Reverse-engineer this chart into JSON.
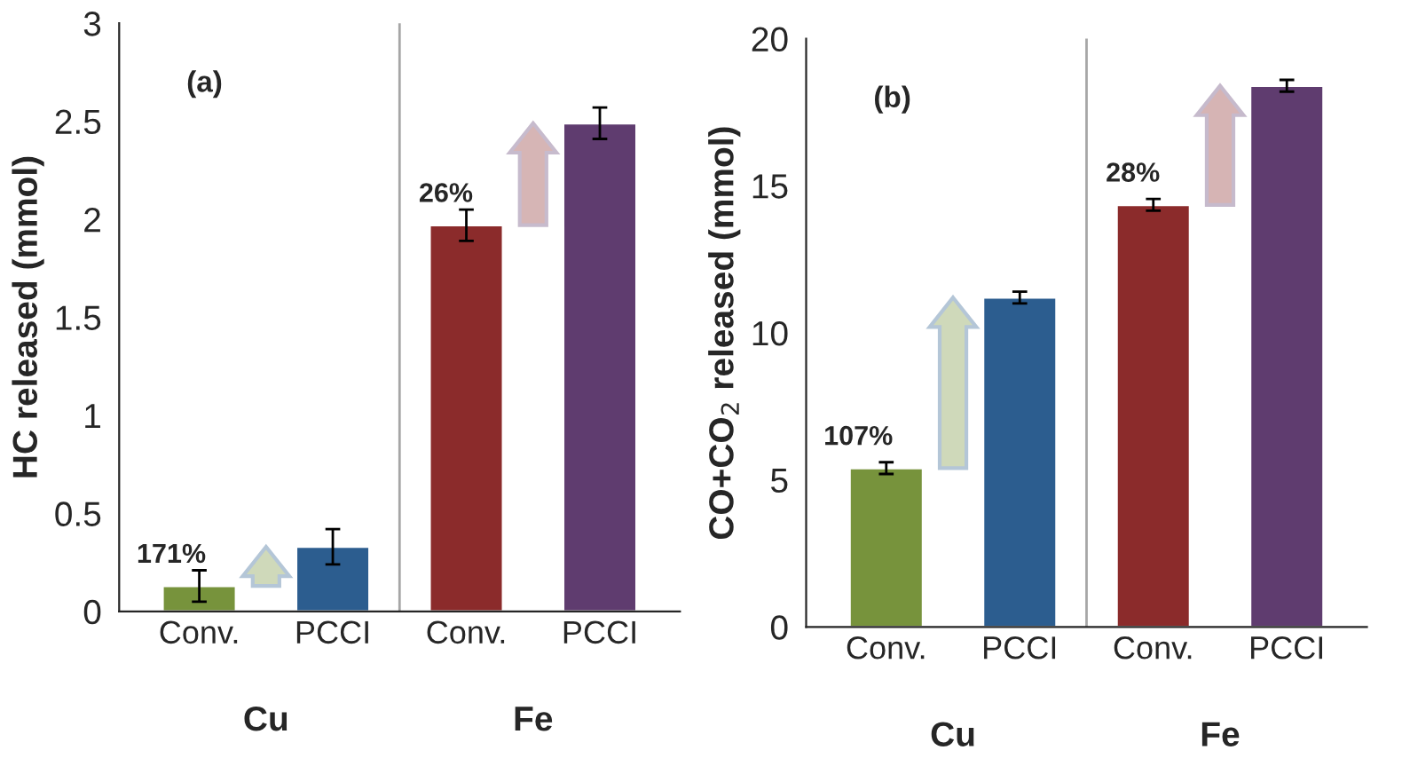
{
  "chart_data": [
    {
      "type": "bar",
      "ylabel": "HC released (mmol)",
      "categories": [
        "Conv.",
        "PCCI",
        "Conv.",
        "PCCI"
      ],
      "values": [
        0.13,
        0.33,
        1.97,
        2.49
      ],
      "errors": [
        0.08,
        0.09,
        0.08,
        0.08
      ],
      "colors": [
        "#77933c",
        "#2c5d8f",
        "#8b2b2b",
        "#5f3c6f"
      ],
      "ylim": [
        0,
        3
      ],
      "yticks": [
        0,
        0.5,
        1,
        1.5,
        2,
        2.5,
        3
      ],
      "grid": false,
      "annotations": [
        "(a)",
        "171%",
        "26%",
        "Cu",
        "Fe"
      ]
    },
    {
      "type": "bar",
      "ylabel": "CO+CO$_{2}$ released (mmol)",
      "categories": [
        "Conv.",
        "PCCI",
        "Conv.",
        "PCCI"
      ],
      "values": [
        5.4,
        11.2,
        14.35,
        18.4
      ],
      "errors": [
        0.2,
        0.2,
        0.2,
        0.2
      ],
      "colors": [
        "#77933c",
        "#2c5d8f",
        "#8b2b2b",
        "#5f3c6f"
      ],
      "ylim": [
        0,
        20
      ],
      "yticks": [
        0,
        5,
        10,
        15,
        20
      ],
      "grid": false,
      "annotations": [
        "(b)",
        "107%",
        "28%",
        "Cu",
        "Fe"
      ]
    }
  ]
}
